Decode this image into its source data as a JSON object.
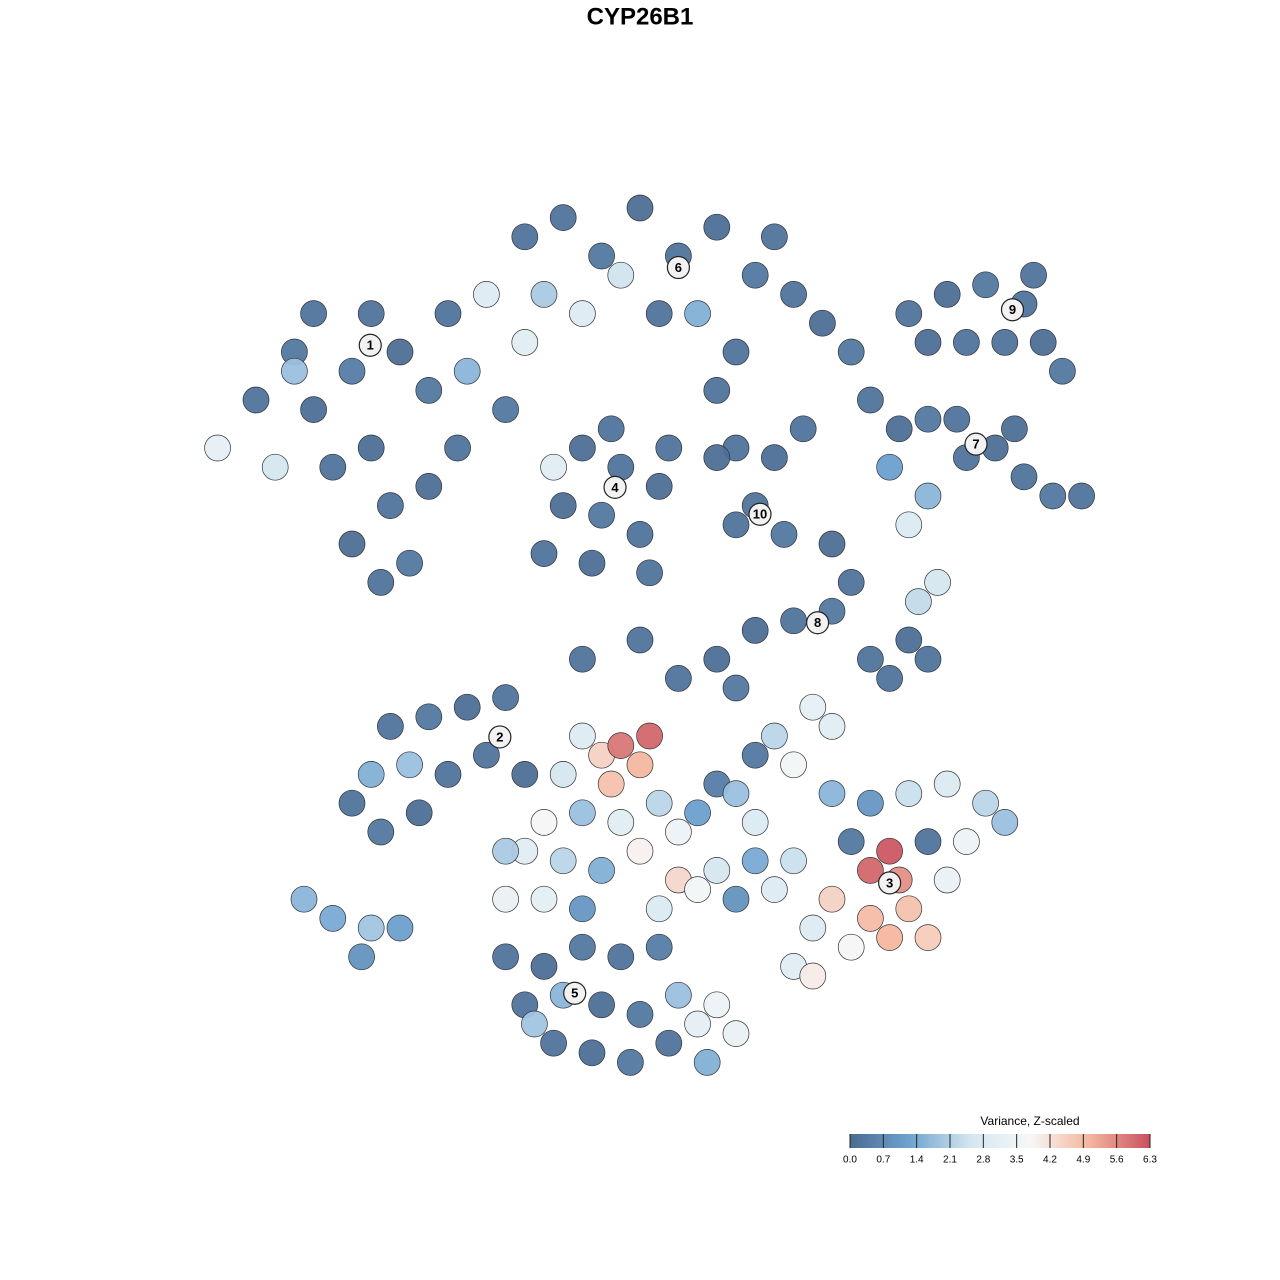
{
  "chart_data": {
    "type": "scatter",
    "title": "CYP26B1",
    "x": [
      -40,
      -36,
      -34,
      -30,
      -28,
      -25,
      -22,
      -32,
      -28,
      -26,
      -30,
      -24,
      -20,
      -18,
      -16,
      -38,
      -36,
      -27,
      -22,
      -34,
      -19,
      -44,
      -12,
      -14,
      -8,
      -4,
      0,
      4,
      8,
      12,
      16,
      19,
      -6,
      -10,
      2,
      6,
      10,
      -2,
      14,
      -12,
      8,
      22,
      -6,
      -2,
      2,
      -4,
      0,
      -8,
      3,
      -5,
      1,
      -10,
      -9,
      -3,
      10,
      14,
      12,
      15,
      10,
      8,
      17,
      28,
      32,
      36,
      40,
      42,
      38,
      34,
      44,
      30,
      41,
      24,
      27,
      30,
      34,
      37,
      40,
      43,
      46,
      33,
      26,
      30,
      28,
      39,
      20,
      22,
      20,
      16,
      12,
      24,
      28,
      30,
      26,
      8,
      4,
      10,
      31,
      29,
      0,
      -6,
      -26,
      -22,
      -18,
      -14,
      -24,
      -28,
      -30,
      -27,
      -23,
      -20,
      -16,
      -12,
      -35,
      -32,
      -28,
      -25,
      -29,
      -6,
      -4,
      -2,
      0,
      -3,
      1,
      -8,
      -6,
      -2,
      2,
      4,
      6,
      8,
      10,
      12,
      -10,
      -12,
      -8,
      -4,
      0,
      4,
      8,
      12,
      14,
      16,
      -14,
      -10,
      -6,
      2,
      6,
      10,
      -14,
      18,
      20,
      14,
      12,
      16,
      20,
      24,
      28,
      32,
      36,
      38,
      34,
      30,
      26,
      24,
      27,
      22,
      20,
      24,
      28,
      30,
      26,
      18,
      32,
      22,
      16,
      18,
      -14,
      -10,
      -6,
      -2,
      2,
      -12,
      -8,
      -4,
      0,
      4,
      -9,
      -5,
      -1,
      3,
      6,
      8,
      10,
      -11,
      7
    ],
    "y": [
      25,
      30,
      24,
      28,
      34,
      30,
      26,
      18,
      20,
      14,
      10,
      8,
      34,
      28,
      36,
      18,
      28,
      6,
      16,
      34,
      20,
      20,
      31,
      24,
      44,
      40,
      45,
      40,
      43,
      38,
      36,
      33,
      34,
      36,
      34,
      34,
      30,
      38,
      42,
      42,
      26,
      30,
      20,
      18,
      16,
      13,
      11,
      14,
      20,
      8,
      7,
      9,
      18,
      22,
      20,
      19,
      14,
      11,
      12,
      19,
      22,
      34,
      36,
      37,
      35,
      31,
      31,
      31,
      28,
      31,
      38,
      25,
      22,
      23,
      19,
      20,
      17,
      15,
      15,
      23,
      18,
      15,
      12,
      22,
      10,
      6,
      3,
      2,
      1,
      -2,
      0,
      -2,
      -4,
      -2,
      -4,
      -5,
      6,
      4,
      0,
      -2,
      -9,
      -8,
      -7,
      -6,
      -13,
      -14,
      -17,
      -20,
      -18,
      -14,
      -12,
      -14,
      -27,
      -29,
      -30,
      -30,
      -33,
      -10,
      -12,
      -11,
      -13,
      -15,
      -10,
      -14,
      -18,
      -19,
      -17,
      -20,
      -18,
      -15,
      -16,
      -19,
      -19,
      -22,
      -23,
      -24,
      -22,
      -25,
      -24,
      -23,
      -26,
      -23,
      -27,
      -27,
      -28,
      -28,
      -26,
      -27,
      -22,
      -7,
      -9,
      -10,
      -12,
      -13,
      -16,
      -17,
      -16,
      -15,
      -17,
      -19,
      -21,
      -21,
      -22,
      -24,
      -25,
      -21,
      -27,
      -29,
      -28,
      -31,
      -31,
      -30,
      -25,
      -32,
      -34,
      -35,
      -33,
      -34,
      -32,
      -33,
      -32,
      -38,
      -37,
      -38,
      -39,
      -37,
      -42,
      -43,
      -44,
      -42,
      -40,
      -38,
      -41,
      -40,
      -44
    ],
    "values": [
      0.2,
      0.3,
      0.1,
      0.4,
      0.2,
      0.1,
      0.3,
      0.2,
      0.1,
      0.2,
      0.1,
      0.3,
      0.2,
      1.6,
      2.9,
      2.6,
      1.8,
      0.2,
      0.1,
      0.2,
      0.2,
      3.2,
      3.0,
      0.3,
      0.2,
      0.3,
      0.1,
      0.2,
      0.1,
      0.3,
      0.2,
      0.1,
      2.9,
      2.0,
      0.2,
      1.5,
      0.2,
      2.5,
      0.2,
      0.2,
      0.2,
      0.3,
      0.1,
      0.2,
      0.1,
      0.3,
      0.2,
      0.1,
      0.2,
      0.1,
      0.2,
      0.2,
      3.0,
      0.2,
      0.2,
      0.1,
      0.2,
      0.3,
      0.2,
      0.1,
      0.2,
      0.2,
      0.1,
      0.3,
      0.2,
      0.1,
      0.2,
      0.2,
      0.3,
      0.1,
      0.2,
      0.2,
      0.1,
      0.3,
      0.2,
      0.1,
      0.2,
      0.3,
      0.2,
      0.2,
      1.2,
      1.6,
      2.8,
      0.1,
      0.1,
      0.2,
      0.3,
      0.2,
      0.1,
      0.2,
      0.1,
      0.2,
      0.2,
      0.1,
      0.2,
      0.3,
      2.6,
      2.3,
      0.2,
      0.2,
      0.2,
      0.3,
      0.1,
      0.2,
      1.8,
      1.5,
      0.2,
      0.3,
      0.1,
      0.2,
      0.2,
      0.1,
      1.6,
      1.4,
      1.9,
      1.2,
      0.9,
      2.9,
      4.5,
      5.8,
      5.0,
      4.8,
      6.0,
      2.6,
      1.8,
      3.0,
      2.2,
      3.4,
      1.2,
      0.4,
      1.8,
      2.8,
      3.8,
      3.0,
      2.2,
      1.5,
      3.9,
      4.4,
      2.6,
      1.4,
      2.9,
      2.4,
      3.3,
      3.1,
      1.0,
      2.8,
      3.6,
      0.9,
      2.0,
      3.2,
      3.0,
      2.2,
      0.3,
      3.6,
      1.6,
      1.0,
      2.4,
      2.8,
      2.2,
      1.8,
      3.4,
      0.2,
      6.2,
      6.0,
      5.5,
      0.3,
      4.5,
      4.9,
      4.8,
      4.6,
      5.0,
      2.9,
      3.3,
      3.7,
      3.0,
      4.0,
      0.2,
      0.1,
      0.3,
      0.2,
      0.4,
      0.2,
      1.6,
      0.1,
      0.3,
      1.8,
      0.2,
      0.1,
      0.3,
      0.2,
      3.1,
      3.4,
      3.3,
      1.9,
      1.5
    ],
    "xlim": [
      -50,
      50
    ],
    "ylim": [
      -50,
      50
    ],
    "cluster_labels": [
      {
        "text": "1",
        "x": -28.1,
        "y": 30.7
      },
      {
        "text": "2",
        "x": -14.6,
        "y": -10.1
      },
      {
        "text": "3",
        "x": 26,
        "y": -25.3
      },
      {
        "text": "4",
        "x": -2.6,
        "y": 15.9
      },
      {
        "text": "5",
        "x": -6.8,
        "y": -36.8
      },
      {
        "text": "6",
        "x": 4,
        "y": 38.8
      },
      {
        "text": "7",
        "x": 35,
        "y": 20.4
      },
      {
        "text": "8",
        "x": 18.5,
        "y": 1.8
      },
      {
        "text": "9",
        "x": 38.8,
        "y": 34.4
      },
      {
        "text": "10",
        "x": 12.5,
        "y": 13.1
      }
    ],
    "colorbar": {
      "title": "Variance, Z-scaled",
      "clim": [
        0,
        6.3
      ],
      "colors": [
        "#4a6b92",
        "#6fa3d0",
        "#d3e6f0",
        "#f7f7f7",
        "#f4b59d",
        "#c8505e"
      ],
      "ticks": [
        {
          "value": 0,
          "label": "0.0"
        },
        0.7,
        1.4,
        2.1,
        2.8,
        3.5,
        4.2,
        4.9,
        5.6,
        6.3
      ]
    }
  }
}
